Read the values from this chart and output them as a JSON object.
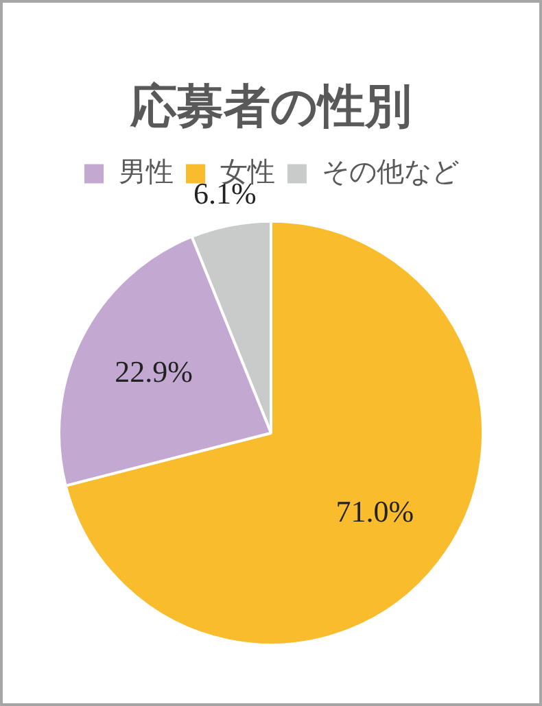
{
  "chart_data": {
    "type": "pie",
    "title": "応募者の性別",
    "categories": [
      "男性",
      "女性",
      "その他など"
    ],
    "values": [
      22.9,
      71.0,
      6.1
    ],
    "colors": [
      "#c3a9d1",
      "#f8bc2c",
      "#c9cbcb"
    ],
    "value_labels": [
      "22.9%",
      "71.0%",
      "6.1%"
    ],
    "legend": "top"
  }
}
